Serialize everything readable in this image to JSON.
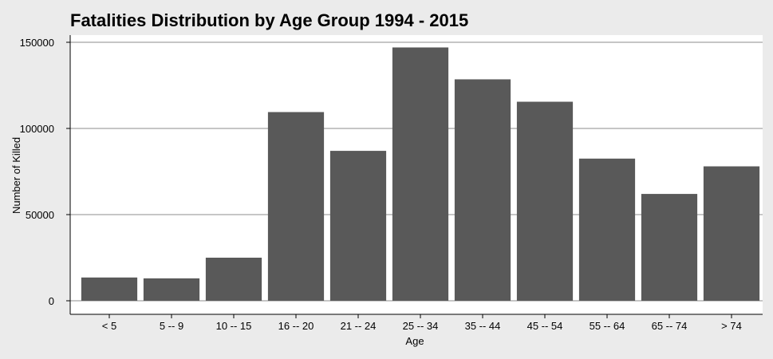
{
  "chart_data": {
    "type": "bar",
    "title": "Fatalities Distribution by Age Group 1994 - 2015",
    "xlabel": "Age",
    "ylabel": "Number of Killed",
    "categories": [
      "< 5",
      "5 -- 9",
      "10 -- 15",
      "16 -- 20",
      "21 -- 24",
      "25 -- 34",
      "35 -- 44",
      "45 -- 54",
      "55 -- 64",
      "65 -- 74",
      "> 74"
    ],
    "values": [
      13500,
      13000,
      25000,
      109500,
      87000,
      147000,
      128500,
      115500,
      82500,
      62000,
      78000
    ],
    "yticks": [
      0,
      50000,
      100000,
      150000
    ],
    "ylim": [
      0,
      150000
    ],
    "grid": true,
    "colors": {
      "bar": "#595959",
      "background": "#ebebeb",
      "plot_background": "#ffffff",
      "grid": "#b3b3b3"
    }
  }
}
